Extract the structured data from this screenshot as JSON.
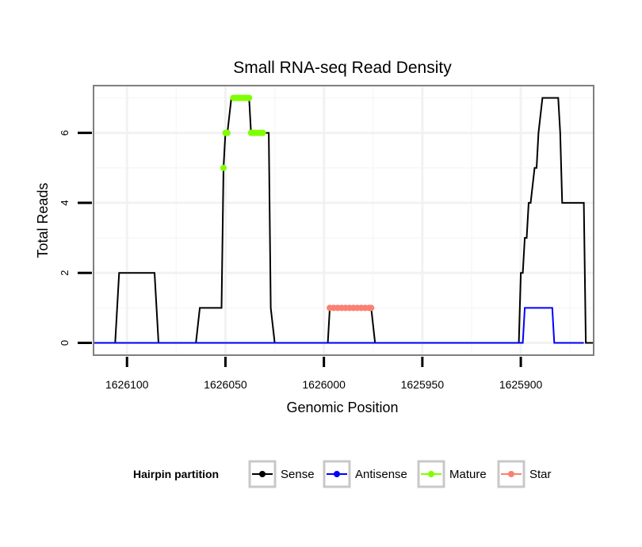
{
  "chart_data": {
    "type": "line",
    "title": "Small RNA-seq Read Density",
    "xlabel": "Genomic Position",
    "ylabel": "Total Reads",
    "x_reversed": true,
    "xlim": [
      1626117,
      1625863
    ],
    "ylim": [
      -0.35,
      7.35
    ],
    "x_ticks": [
      1626100,
      1626050,
      1626000,
      1625950,
      1625900
    ],
    "x_tick_labels": [
      "1626100",
      "1626050",
      "1626000",
      "1625950",
      "1625900"
    ],
    "y_ticks": [
      0,
      2,
      4,
      6
    ],
    "y_tick_labels": [
      "0",
      "2",
      "4",
      "6"
    ],
    "grid": true,
    "legend": {
      "title": "Hairpin partition",
      "position": "bottom",
      "entries": [
        {
          "name": "Sense",
          "color": "#000000"
        },
        {
          "name": "Antisense",
          "color": "#0000ff"
        },
        {
          "name": "Mature",
          "color": "#7fff00"
        },
        {
          "name": "Star",
          "color": "#fa8072"
        }
      ]
    },
    "series": [
      {
        "name": "Sense",
        "color": "#000000",
        "style": "line",
        "x": [
          1626117,
          1626106,
          1626104,
          1626086,
          1626084,
          1626065,
          1626063,
          1626052,
          1626051,
          1626050,
          1626049,
          1626047,
          1626046,
          1626038,
          1626037,
          1626036,
          1626034,
          1626028,
          1626027,
          1626025,
          1626024,
          1625998,
          1625997,
          1625976,
          1625974,
          1625901,
          1625900,
          1625899,
          1625898,
          1625897,
          1625896,
          1625895,
          1625893,
          1625892,
          1625891,
          1625889,
          1625888,
          1625881,
          1625880,
          1625879,
          1625878,
          1625868,
          1625867,
          1625863
        ],
        "y": [
          0,
          0,
          2,
          2,
          0,
          0,
          1,
          1,
          5,
          6,
          6,
          7,
          7,
          7,
          6,
          6,
          6,
          6,
          1,
          0,
          0,
          0,
          1,
          1,
          0,
          0,
          2,
          2,
          3,
          3,
          4,
          4,
          5,
          5,
          6,
          7,
          7,
          7,
          6,
          4,
          4,
          4,
          0,
          0
        ]
      },
      {
        "name": "Antisense",
        "color": "#0000ff",
        "style": "line",
        "x": [
          1626117,
          1625899,
          1625898,
          1625884,
          1625883,
          1625868
        ],
        "y": [
          0,
          0,
          1,
          1,
          0,
          0
        ]
      },
      {
        "name": "Mature",
        "color": "#7fff00",
        "style": "points",
        "x": [
          1626051,
          1626050,
          1626049,
          1626046,
          1626045,
          1626044,
          1626043,
          1626042,
          1626041,
          1626040,
          1626039,
          1626038,
          1626037,
          1626036,
          1626035,
          1626034,
          1626033,
          1626032,
          1626031
        ],
        "y": [
          5,
          6,
          6,
          7,
          7,
          7,
          7,
          7,
          7,
          7,
          7,
          7,
          6,
          6,
          6,
          6,
          6,
          6,
          6
        ]
      },
      {
        "name": "Star",
        "color": "#fa8072",
        "style": "points",
        "x": [
          1625997,
          1625995,
          1625993,
          1625991,
          1625989,
          1625987,
          1625985,
          1625983,
          1625981,
          1625979,
          1625977,
          1625976
        ],
        "y": [
          1,
          1,
          1,
          1,
          1,
          1,
          1,
          1,
          1,
          1,
          1,
          1
        ]
      }
    ]
  }
}
